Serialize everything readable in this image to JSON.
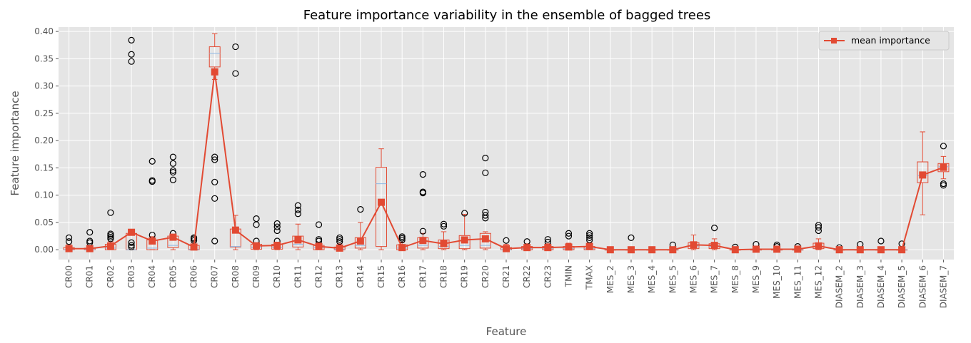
{
  "chart_data": {
    "type": "box",
    "title": "Feature importance variability in the ensemble of bagged trees",
    "xlabel": "Feature",
    "ylabel": "Feature importance",
    "ylim": [
      -0.018,
      0.408
    ],
    "yticks": [
      0.0,
      0.05,
      0.1,
      0.15,
      0.2,
      0.25,
      0.3,
      0.35,
      0.4
    ],
    "ytick_labels": [
      "0.00",
      "0.05",
      "0.10",
      "0.15",
      "0.20",
      "0.25",
      "0.30",
      "0.35",
      "0.40"
    ],
    "grid": true,
    "legend": {
      "position": "top-right",
      "entries": [
        "mean importance"
      ]
    },
    "colors": {
      "background": "#e5e5e5",
      "grid": "#ffffff",
      "box": "#e24a33",
      "median": "#8eb8e5",
      "mean_line": "#e24a33",
      "flier": "#000000"
    },
    "categories": [
      "CR00",
      "CR01",
      "CR02",
      "CR03",
      "CR04",
      "CR05",
      "CR06",
      "CR07",
      "CR08",
      "CR09",
      "CR10",
      "CR11",
      "CR12",
      "CR13",
      "CR14",
      "CR15",
      "CR16",
      "CR17",
      "CR18",
      "CR19",
      "CR20",
      "CR21",
      "CR22",
      "CR23",
      "TMIN",
      "TMAX",
      "MES_2",
      "MES_3",
      "MES_4",
      "MES_5",
      "MES_6",
      "MES_7",
      "MES_8",
      "MES_9",
      "MES_10",
      "MES_11",
      "MES_12",
      "DIASEM_2",
      "DIASEM_3",
      "DIASEM_4",
      "DIASEM_5",
      "DIASEM_6",
      "DIASEM_7"
    ],
    "series": [
      {
        "name": "mean importance",
        "values": [
          0.002,
          0.002,
          0.007,
          0.032,
          0.016,
          0.023,
          0.005,
          0.326,
          0.036,
          0.007,
          0.008,
          0.018,
          0.006,
          0.003,
          0.016,
          0.087,
          0.004,
          0.017,
          0.011,
          0.018,
          0.02,
          0.002,
          0.004,
          0.004,
          0.005,
          0.006,
          0.0,
          0.0,
          0.0,
          0.0,
          0.009,
          0.008,
          0.0,
          0.001,
          0.001,
          0.001,
          0.007,
          0.0,
          0.0,
          0.0,
          0.0,
          0.137,
          0.151
        ]
      }
    ],
    "boxes": [
      {
        "q1": 0.0,
        "med": 0.0,
        "q3": 0.004,
        "wlo": 0.0,
        "whi": 0.01,
        "fliers": [
          0.015,
          0.022
        ]
      },
      {
        "q1": 0.0,
        "med": 0.0,
        "q3": 0.003,
        "wlo": 0.0,
        "whi": 0.008,
        "fliers": [
          0.013,
          0.016,
          0.032
        ]
      },
      {
        "q1": 0.0,
        "med": 0.003,
        "q3": 0.01,
        "wlo": 0.0,
        "whi": 0.015,
        "fliers": [
          0.02,
          0.023,
          0.026,
          0.029,
          0.068
        ]
      },
      {
        "q1": 0.0,
        "med": 0.0,
        "q3": 0.03,
        "wlo": 0.0,
        "whi": 0.034,
        "fliers": [
          0.005,
          0.008,
          0.013,
          0.345,
          0.358,
          0.384
        ]
      },
      {
        "q1": 0.0,
        "med": 0.003,
        "q3": 0.018,
        "wlo": 0.0,
        "whi": 0.024,
        "fliers": [
          0.027,
          0.125,
          0.127,
          0.162
        ]
      },
      {
        "q1": 0.004,
        "med": 0.008,
        "q3": 0.025,
        "wlo": 0.0,
        "whi": 0.028,
        "fliers": [
          0.03,
          0.128,
          0.142,
          0.145,
          0.158,
          0.17
        ]
      },
      {
        "q1": 0.0,
        "med": 0.001,
        "q3": 0.008,
        "wlo": 0.0,
        "whi": 0.013,
        "fliers": [
          0.017,
          0.02,
          0.022
        ]
      },
      {
        "q1": 0.335,
        "med": 0.36,
        "q3": 0.372,
        "wlo": 0.312,
        "whi": 0.396,
        "fliers": [
          0.016,
          0.094,
          0.124,
          0.165,
          0.17
        ]
      },
      {
        "q1": 0.005,
        "med": 0.006,
        "q3": 0.038,
        "wlo": 0.0,
        "whi": 0.063,
        "fliers": [
          0.323,
          0.372
        ]
      },
      {
        "q1": 0.001,
        "med": 0.004,
        "q3": 0.01,
        "wlo": 0.0,
        "whi": 0.013,
        "fliers": [
          0.016,
          0.046,
          0.057
        ]
      },
      {
        "q1": 0.001,
        "med": 0.004,
        "q3": 0.01,
        "wlo": 0.0,
        "whi": 0.014,
        "fliers": [
          0.016,
          0.035,
          0.042,
          0.048
        ]
      },
      {
        "q1": 0.005,
        "med": 0.01,
        "q3": 0.025,
        "wlo": 0.0,
        "whi": 0.047,
        "fliers": [
          0.066,
          0.073,
          0.081
        ]
      },
      {
        "q1": 0.0,
        "med": 0.004,
        "q3": 0.008,
        "wlo": 0.0,
        "whi": 0.013,
        "fliers": [
          0.016,
          0.019,
          0.046
        ]
      },
      {
        "q1": 0.0,
        "med": 0.001,
        "q3": 0.005,
        "wlo": 0.0,
        "whi": 0.011,
        "fliers": [
          0.015,
          0.019,
          0.022
        ]
      },
      {
        "q1": 0.003,
        "med": 0.008,
        "q3": 0.022,
        "wlo": 0.0,
        "whi": 0.05,
        "fliers": [
          0.074
        ]
      },
      {
        "q1": 0.006,
        "med": 0.121,
        "q3": 0.151,
        "wlo": 0.0,
        "whi": 0.185,
        "fliers": []
      },
      {
        "q1": 0.0,
        "med": 0.003,
        "q3": 0.009,
        "wlo": 0.0,
        "whi": 0.014,
        "fliers": [
          0.018,
          0.021,
          0.024
        ]
      },
      {
        "q1": 0.003,
        "med": 0.008,
        "q3": 0.022,
        "wlo": 0.0,
        "whi": 0.03,
        "fliers": [
          0.034,
          0.104,
          0.106,
          0.138
        ]
      },
      {
        "q1": 0.002,
        "med": 0.006,
        "q3": 0.018,
        "wlo": 0.0,
        "whi": 0.033,
        "fliers": [
          0.043,
          0.047
        ]
      },
      {
        "q1": 0.002,
        "med": 0.008,
        "q3": 0.026,
        "wlo": 0.0,
        "whi": 0.065,
        "fliers": [
          0.067
        ]
      },
      {
        "q1": 0.003,
        "med": 0.008,
        "q3": 0.03,
        "wlo": 0.0,
        "whi": 0.033,
        "fliers": [
          0.058,
          0.063,
          0.069,
          0.141,
          0.168
        ]
      },
      {
        "q1": 0.0,
        "med": 0.0,
        "q3": 0.004,
        "wlo": 0.0,
        "whi": 0.01,
        "fliers": [
          0.017
        ]
      },
      {
        "q1": 0.0,
        "med": 0.002,
        "q3": 0.006,
        "wlo": 0.0,
        "whi": 0.011,
        "fliers": [
          0.015
        ]
      },
      {
        "q1": 0.0,
        "med": 0.002,
        "q3": 0.006,
        "wlo": 0.0,
        "whi": 0.011,
        "fliers": [
          0.014,
          0.019
        ]
      },
      {
        "q1": 0.0,
        "med": 0.002,
        "q3": 0.006,
        "wlo": 0.0,
        "whi": 0.012,
        "fliers": [
          0.025,
          0.03
        ]
      },
      {
        "q1": 0.0,
        "med": 0.002,
        "q3": 0.006,
        "wlo": 0.0,
        "whi": 0.013,
        "fliers": [
          0.018,
          0.022,
          0.026,
          0.03
        ]
      },
      {
        "q1": 0.0,
        "med": 0.0,
        "q3": 0.0,
        "wlo": 0.0,
        "whi": 0.0,
        "fliers": []
      },
      {
        "q1": 0.0,
        "med": 0.0,
        "q3": 0.0,
        "wlo": 0.0,
        "whi": 0.002,
        "fliers": [
          0.022
        ]
      },
      {
        "q1": 0.0,
        "med": 0.0,
        "q3": 0.0,
        "wlo": 0.0,
        "whi": 0.0,
        "fliers": []
      },
      {
        "q1": 0.0,
        "med": 0.0,
        "q3": 0.0,
        "wlo": 0.0,
        "whi": 0.003,
        "fliers": [
          0.009
        ]
      },
      {
        "q1": 0.002,
        "med": 0.007,
        "q3": 0.013,
        "wlo": 0.0,
        "whi": 0.027,
        "fliers": []
      },
      {
        "q1": 0.002,
        "med": 0.006,
        "q3": 0.011,
        "wlo": 0.0,
        "whi": 0.02,
        "fliers": [
          0.04
        ]
      },
      {
        "q1": 0.0,
        "med": 0.0,
        "q3": 0.0,
        "wlo": 0.0,
        "whi": 0.002,
        "fliers": [
          0.005
        ]
      },
      {
        "q1": 0.0,
        "med": 0.0,
        "q3": 0.0,
        "wlo": 0.0,
        "whi": 0.002,
        "fliers": [
          0.01
        ]
      },
      {
        "q1": 0.0,
        "med": 0.0,
        "q3": 0.0,
        "wlo": 0.0,
        "whi": 0.003,
        "fliers": [
          0.006,
          0.009
        ]
      },
      {
        "q1": 0.0,
        "med": 0.0,
        "q3": 0.0,
        "wlo": 0.0,
        "whi": 0.002,
        "fliers": [
          0.006
        ]
      },
      {
        "q1": 0.002,
        "med": 0.006,
        "q3": 0.012,
        "wlo": 0.0,
        "whi": 0.02,
        "fliers": [
          0.035,
          0.041,
          0.045
        ]
      },
      {
        "q1": 0.0,
        "med": 0.0,
        "q3": 0.0,
        "wlo": 0.0,
        "whi": 0.002,
        "fliers": [
          0.004
        ]
      },
      {
        "q1": 0.0,
        "med": 0.0,
        "q3": 0.0,
        "wlo": 0.0,
        "whi": 0.002,
        "fliers": [
          0.01
        ]
      },
      {
        "q1": 0.0,
        "med": 0.0,
        "q3": 0.0,
        "wlo": 0.0,
        "whi": 0.002,
        "fliers": [
          0.016
        ]
      },
      {
        "q1": 0.0,
        "med": 0.0,
        "q3": 0.0,
        "wlo": 0.0,
        "whi": 0.002,
        "fliers": [
          0.011
        ]
      },
      {
        "q1": 0.123,
        "med": 0.136,
        "q3": 0.161,
        "wlo": 0.064,
        "whi": 0.216,
        "fliers": []
      },
      {
        "q1": 0.143,
        "med": 0.152,
        "q3": 0.158,
        "wlo": 0.13,
        "whi": 0.171,
        "fliers": [
          0.118,
          0.121,
          0.19
        ]
      }
    ]
  }
}
